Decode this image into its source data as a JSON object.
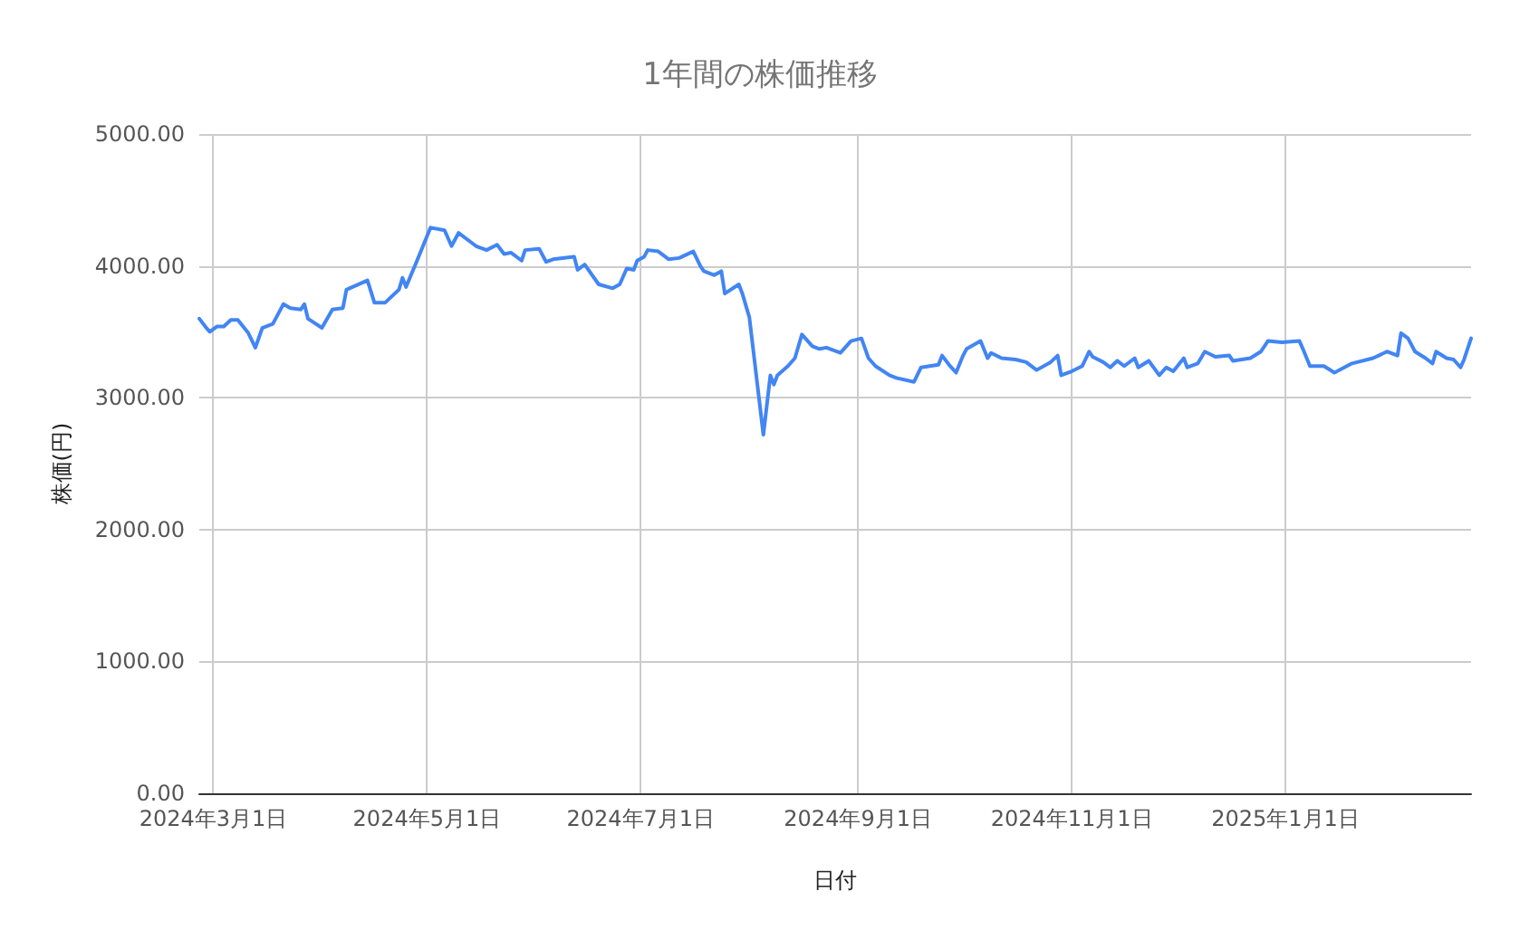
{
  "chart_data": {
    "type": "line",
    "title": "1年間の株価推移",
    "xlabel": "日付",
    "ylabel": "株価(円)",
    "xlim": [
      "2024-02-26",
      "2025-02-23"
    ],
    "xticks": [
      {
        "value": "2024-03-01",
        "label": "2024年3月1日"
      },
      {
        "value": "2024-05-01",
        "label": "2024年5月1日"
      },
      {
        "value": "2024-07-01",
        "label": "2024年7月1日"
      },
      {
        "value": "2024-09-01",
        "label": "2024年9月1日"
      },
      {
        "value": "2024-11-01",
        "label": "2024年11月1日"
      },
      {
        "value": "2025-01-01",
        "label": "2025年1月1日"
      }
    ],
    "ylim": [
      0,
      5000
    ],
    "yticks": [
      {
        "value": 0,
        "label": "0.00"
      },
      {
        "value": 1000,
        "label": "1000.00"
      },
      {
        "value": 2000,
        "label": "2000.00"
      },
      {
        "value": 3000,
        "label": "3000.00"
      },
      {
        "value": 4000,
        "label": "4000.00"
      },
      {
        "value": 5000,
        "label": "5000.00"
      }
    ],
    "grid": true,
    "marker": "none",
    "line_style": "solid",
    "series": [
      {
        "color": "#4285f4",
        "x": [
          "2024-02-26",
          "2024-02-28",
          "2024-02-29",
          "2024-03-02",
          "2024-03-04",
          "2024-03-06",
          "2024-03-08",
          "2024-03-11",
          "2024-03-13",
          "2024-03-15",
          "2024-03-18",
          "2024-03-21",
          "2024-03-23",
          "2024-03-26",
          "2024-03-27",
          "2024-03-28",
          "2024-04-01",
          "2024-04-04",
          "2024-04-07",
          "2024-04-08",
          "2024-04-14",
          "2024-04-16",
          "2024-04-19",
          "2024-04-23",
          "2024-04-24",
          "2024-04-25",
          "2024-04-28",
          "2024-04-30",
          "2024-05-02",
          "2024-05-06",
          "2024-05-08",
          "2024-05-10",
          "2024-05-15",
          "2024-05-18",
          "2024-05-21",
          "2024-05-23",
          "2024-05-25",
          "2024-05-28",
          "2024-05-29",
          "2024-06-02",
          "2024-06-04",
          "2024-06-06",
          "2024-06-12",
          "2024-06-13",
          "2024-06-15",
          "2024-06-19",
          "2024-06-23",
          "2024-06-25",
          "2024-06-27",
          "2024-06-29",
          "2024-06-30",
          "2024-07-02",
          "2024-07-03",
          "2024-07-06",
          "2024-07-09",
          "2024-07-12",
          "2024-07-16",
          "2024-07-18",
          "2024-07-19",
          "2024-07-22",
          "2024-07-24",
          "2024-07-25",
          "2024-07-29",
          "2024-07-30",
          "2024-08-01",
          "2024-08-05",
          "2024-08-07",
          "2024-08-08",
          "2024-08-09",
          "2024-08-12",
          "2024-08-14",
          "2024-08-16",
          "2024-08-19",
          "2024-08-21",
          "2024-08-23",
          "2024-08-27",
          "2024-08-30",
          "2024-09-02",
          "2024-09-04",
          "2024-09-06",
          "2024-09-10",
          "2024-09-12",
          "2024-09-17",
          "2024-09-19",
          "2024-09-24",
          "2024-09-25",
          "2024-09-27",
          "2024-09-29",
          "2024-10-01",
          "2024-10-02",
          "2024-10-06",
          "2024-10-08",
          "2024-10-09",
          "2024-10-12",
          "2024-10-16",
          "2024-10-19",
          "2024-10-22",
          "2024-10-26",
          "2024-10-28",
          "2024-10-29",
          "2024-11-01",
          "2024-11-04",
          "2024-11-06",
          "2024-11-07",
          "2024-11-10",
          "2024-11-12",
          "2024-11-14",
          "2024-11-16",
          "2024-11-19",
          "2024-11-20",
          "2024-11-23",
          "2024-11-26",
          "2024-11-28",
          "2024-11-30",
          "2024-12-03",
          "2024-12-04",
          "2024-12-07",
          "2024-12-09",
          "2024-12-12",
          "2024-12-16",
          "2024-12-17",
          "2024-12-22",
          "2024-12-25",
          "2024-12-27",
          "2024-12-31",
          "2025-01-05",
          "2025-01-06",
          "2025-01-08",
          "2025-01-12",
          "2025-01-15",
          "2025-01-20",
          "2025-01-26",
          "2025-01-30",
          "2025-02-02",
          "2025-02-03",
          "2025-02-05",
          "2025-02-07",
          "2025-02-10",
          "2025-02-12",
          "2025-02-13",
          "2025-02-16",
          "2025-02-18",
          "2025-02-20",
          "2025-02-21",
          "2025-02-23"
        ],
        "values": [
          3600,
          3530,
          3500,
          3540,
          3540,
          3590,
          3590,
          3490,
          3380,
          3530,
          3560,
          3710,
          3680,
          3670,
          3710,
          3600,
          3530,
          3670,
          3680,
          3820,
          3890,
          3720,
          3720,
          3820,
          3910,
          3840,
          4030,
          4160,
          4290,
          4270,
          4150,
          4250,
          4150,
          4120,
          4160,
          4090,
          4100,
          4040,
          4120,
          4130,
          4030,
          4050,
          4070,
          3970,
          4010,
          3860,
          3830,
          3860,
          3980,
          3970,
          4040,
          4070,
          4120,
          4110,
          4050,
          4060,
          4110,
          4000,
          3960,
          3930,
          3960,
          3790,
          3860,
          3790,
          3610,
          2720,
          3170,
          3100,
          3170,
          3240,
          3300,
          3480,
          3390,
          3370,
          3380,
          3340,
          3430,
          3450,
          3300,
          3240,
          3170,
          3150,
          3120,
          3230,
          3250,
          3320,
          3250,
          3190,
          3320,
          3370,
          3430,
          3300,
          3340,
          3300,
          3290,
          3270,
          3210,
          3270,
          3320,
          3170,
          3200,
          3240,
          3350,
          3310,
          3270,
          3230,
          3280,
          3240,
          3300,
          3230,
          3280,
          3170,
          3230,
          3200,
          3300,
          3230,
          3260,
          3350,
          3310,
          3320,
          3280,
          3300,
          3350,
          3430,
          3420,
          3430,
          3370,
          3240,
          3240,
          3190,
          3260,
          3300,
          3350,
          3320,
          3490,
          3450,
          3350,
          3300,
          3260,
          3350,
          3300,
          3290,
          3230,
          3290,
          3450
        ]
      }
    ]
  }
}
